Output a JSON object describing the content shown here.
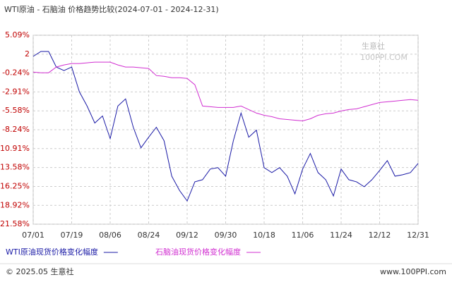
{
  "chart_data": {
    "type": "line",
    "title": "WTI原油 - 石脑油 价格趋势比较(2024-07-01 - 2024-12-31)",
    "categories": [
      "07/01",
      null,
      null,
      null,
      null,
      "07/19",
      null,
      null,
      null,
      null,
      "08/06",
      null,
      null,
      null,
      null,
      "08/24",
      null,
      null,
      null,
      null,
      "09/12",
      null,
      null,
      null,
      null,
      "09/30",
      null,
      null,
      null,
      null,
      "10/18",
      null,
      null,
      null,
      null,
      "11/06",
      null,
      null,
      null,
      null,
      "11/24",
      null,
      null,
      null,
      null,
      "12/12",
      null,
      null,
      null,
      null,
      "12/31"
    ],
    "series": [
      {
        "name": "WTI原油现货价格变化幅度",
        "color": "#1a1aa6",
        "values": [
          2.1,
          2.8,
          2.8,
          0.6,
          0.1,
          0.6,
          -2.9,
          -4.9,
          -7.3,
          -6.3,
          -9.5,
          -4.9,
          -3.9,
          -7.9,
          -10.8,
          -9.3,
          -7.9,
          -9.8,
          -14.8,
          -16.8,
          -18.3,
          -15.6,
          -15.3,
          -13.8,
          -13.6,
          -14.8,
          -9.8,
          -5.9,
          -9.3,
          -8.3,
          -13.6,
          -14.3,
          -13.6,
          -14.8,
          -17.3,
          -13.8,
          -11.6,
          -14.3,
          -15.3,
          -17.6,
          -13.8,
          -15.3,
          -15.6,
          -16.3,
          -15.3,
          -14.0,
          -12.6,
          -14.8,
          -14.6,
          -14.3,
          -13.0
        ]
      },
      {
        "name": "石脑油现货价格变化幅度",
        "color": "#d12fd1",
        "values": [
          -0.1,
          -0.2,
          -0.2,
          0.6,
          0.9,
          1.1,
          1.1,
          1.2,
          1.3,
          1.3,
          1.3,
          0.9,
          0.6,
          0.6,
          0.5,
          0.4,
          -0.6,
          -0.7,
          -0.9,
          -0.9,
          -1.0,
          -1.9,
          -4.9,
          -5.0,
          -5.1,
          -5.1,
          -5.1,
          -4.9,
          -5.4,
          -5.9,
          -6.2,
          -6.4,
          -6.7,
          -6.8,
          -6.9,
          -7.0,
          -6.7,
          -6.2,
          -6.0,
          -5.9,
          -5.6,
          -5.4,
          -5.3,
          -5.0,
          -4.7,
          -4.4,
          -4.3,
          -4.2,
          -4.1,
          -4.0,
          -4.1
        ]
      }
    ],
    "ylim": [
      -21.58,
      5.09
    ],
    "yticks": [
      {
        "value": 5.09,
        "label": "5.09%"
      },
      {
        "value": 2.42,
        "label": "2"
      },
      {
        "value": -0.24,
        "label": "-0.24%"
      },
      {
        "value": -2.91,
        "label": "-2.91%"
      },
      {
        "value": -5.58,
        "label": "-5.58%"
      },
      {
        "value": -8.24,
        "label": "-8.24%"
      },
      {
        "value": -10.91,
        "label": "-10.91%"
      },
      {
        "value": -13.58,
        "label": "-13.58%"
      },
      {
        "value": -16.25,
        "label": "-16.25%"
      },
      {
        "value": -18.92,
        "label": "-18.92%"
      },
      {
        "value": -21.58,
        "label": "-21.58%"
      }
    ],
    "grid": true,
    "watermark": {
      "name": "生意社",
      "site": "100PPI.COM"
    },
    "footer": {
      "left": "© 2025.05 生意社",
      "right": "www.100PPI.com"
    }
  }
}
